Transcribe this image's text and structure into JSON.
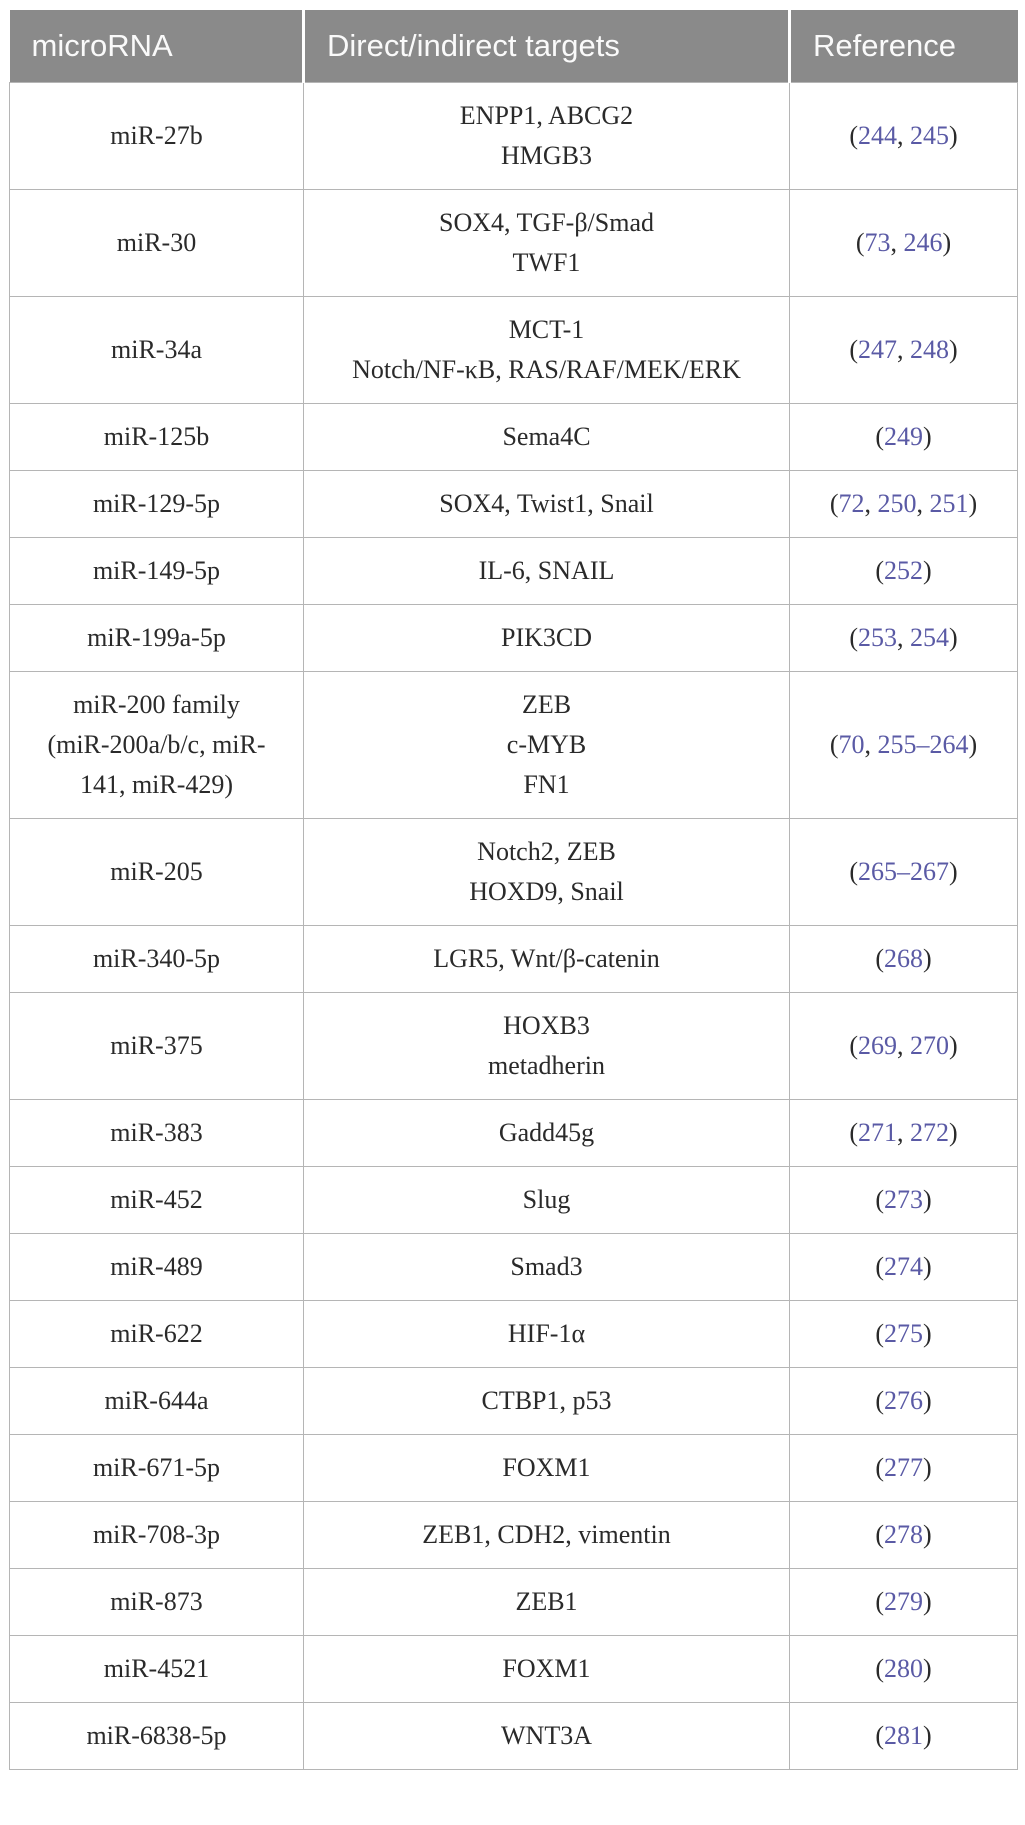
{
  "table": {
    "columns": [
      "microRNA",
      "Direct/indirect targets",
      "Reference"
    ],
    "ref_open": "(",
    "ref_close": ")",
    "ref_separator": ", ",
    "colors": {
      "header_bg": "#8a8a8a",
      "header_text": "#fafafa",
      "body_text": "#2a2a2a",
      "reference_link": "#5a5aa5",
      "border": "#b5b5b5"
    },
    "rows": [
      {
        "mirna": [
          "miR-27b"
        ],
        "targets": [
          "ENPP1, ABCG2",
          "HMGB3"
        ],
        "refs": [
          "244",
          "245"
        ]
      },
      {
        "mirna": [
          "miR-30"
        ],
        "targets": [
          "SOX4, TGF-β/Smad",
          "TWF1"
        ],
        "refs": [
          "73",
          "246"
        ]
      },
      {
        "mirna": [
          "miR-34a"
        ],
        "targets": [
          "MCT-1",
          "Notch/NF-κB, RAS/RAF/MEK/ERK"
        ],
        "refs": [
          "247",
          "248"
        ]
      },
      {
        "mirna": [
          "miR-125b"
        ],
        "targets": [
          "Sema4C"
        ],
        "refs": [
          "249"
        ]
      },
      {
        "mirna": [
          "miR-129-5p"
        ],
        "targets": [
          "SOX4, Twist1, Snail"
        ],
        "refs": [
          "72",
          "250",
          "251"
        ]
      },
      {
        "mirna": [
          "miR-149-5p"
        ],
        "targets": [
          "IL-6, SNAIL"
        ],
        "refs": [
          "252"
        ]
      },
      {
        "mirna": [
          "miR-199a-5p"
        ],
        "targets": [
          "PIK3CD"
        ],
        "refs": [
          "253",
          "254"
        ]
      },
      {
        "mirna": [
          "miR-200 family",
          "(miR-200a/b/c, miR-",
          "141, miR-429)"
        ],
        "targets": [
          "ZEB",
          "c-MYB",
          "FN1"
        ],
        "refs": [
          "70",
          "255–264"
        ]
      },
      {
        "mirna": [
          "miR-205"
        ],
        "targets": [
          "Notch2, ZEB",
          "HOXD9, Snail"
        ],
        "refs": [
          "265–267"
        ]
      },
      {
        "mirna": [
          "miR-340-5p"
        ],
        "targets": [
          "LGR5, Wnt/β-catenin"
        ],
        "refs": [
          "268"
        ]
      },
      {
        "mirna": [
          "miR-375"
        ],
        "targets": [
          "HOXB3",
          "metadherin"
        ],
        "refs": [
          "269",
          "270"
        ]
      },
      {
        "mirna": [
          "miR-383"
        ],
        "targets": [
          "Gadd45g"
        ],
        "refs": [
          "271",
          "272"
        ]
      },
      {
        "mirna": [
          "miR-452"
        ],
        "targets": [
          "Slug"
        ],
        "refs": [
          "273"
        ]
      },
      {
        "mirna": [
          "miR-489"
        ],
        "targets": [
          "Smad3"
        ],
        "refs": [
          "274"
        ]
      },
      {
        "mirna": [
          "miR-622"
        ],
        "targets": [
          "HIF-1α"
        ],
        "refs": [
          "275"
        ]
      },
      {
        "mirna": [
          "miR-644a"
        ],
        "targets": [
          "CTBP1, p53"
        ],
        "refs": [
          "276"
        ]
      },
      {
        "mirna": [
          "miR-671-5p"
        ],
        "targets": [
          "FOXM1"
        ],
        "refs": [
          "277"
        ]
      },
      {
        "mirna": [
          "miR-708-3p"
        ],
        "targets": [
          "ZEB1, CDH2, vimentin"
        ],
        "refs": [
          "278"
        ]
      },
      {
        "mirna": [
          "miR-873"
        ],
        "targets": [
          "ZEB1"
        ],
        "refs": [
          "279"
        ]
      },
      {
        "mirna": [
          "miR-4521"
        ],
        "targets": [
          "FOXM1"
        ],
        "refs": [
          "280"
        ]
      },
      {
        "mirna": [
          "miR-6838-5p"
        ],
        "targets": [
          "WNT3A"
        ],
        "refs": [
          "281"
        ]
      }
    ]
  }
}
